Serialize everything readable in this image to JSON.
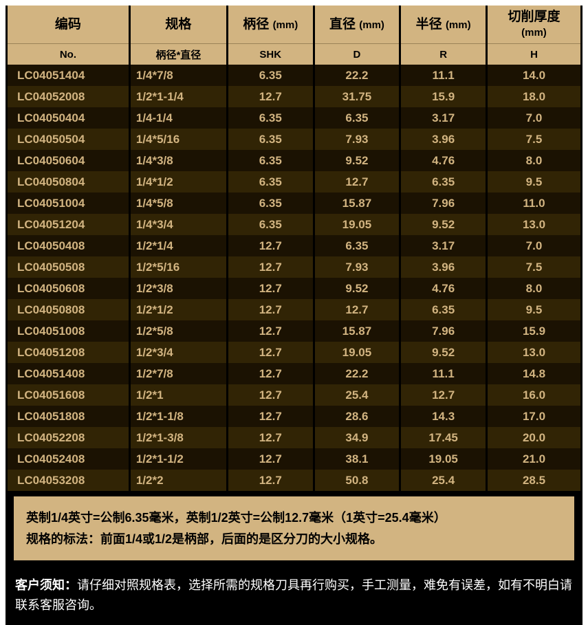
{
  "colors": {
    "header_bg": "#d2b481",
    "header_fg": "#000000",
    "row_odd_bg": "#1b1202",
    "row_even_bg": "#312405",
    "cell_fg": "#d2b481",
    "page_bg": "#ffffff",
    "outer_bg": "#000000"
  },
  "table": {
    "headers_main": [
      "编码",
      "规格",
      "柄径 (mm)",
      "直径 (mm)",
      "半径 (mm)",
      "切削厚度\n(mm)"
    ],
    "headers_sub": [
      "No.",
      "柄径*直径",
      "SHK",
      "D",
      "R",
      "H"
    ],
    "rows": [
      [
        "LC04051404",
        "1/4*7/8",
        "6.35",
        "22.2",
        "11.1",
        "14.0"
      ],
      [
        "LC04052008",
        "1/2*1-1/4",
        "12.7",
        "31.75",
        "15.9",
        "18.0"
      ],
      [
        "LC04050404",
        "1/4-1/4",
        "6.35",
        "6.35",
        "3.17",
        "7.0"
      ],
      [
        "LC04050504",
        "1/4*5/16",
        "6.35",
        "7.93",
        "3.96",
        "7.5"
      ],
      [
        "LC04050604",
        "1/4*3/8",
        "6.35",
        "9.52",
        "4.76",
        "8.0"
      ],
      [
        "LC04050804",
        "1/4*1/2",
        "6.35",
        "12.7",
        "6.35",
        "9.5"
      ],
      [
        "LC04051004",
        "1/4*5/8",
        "6.35",
        "15.87",
        "7.96",
        "11.0"
      ],
      [
        "LC04051204",
        "1/4*3/4",
        "6.35",
        "19.05",
        "9.52",
        "13.0"
      ],
      [
        "LC04050408",
        "1/2*1/4",
        "12.7",
        "6.35",
        "3.17",
        "7.0"
      ],
      [
        "LC04050508",
        "1/2*5/16",
        "12.7",
        "7.93",
        "3.96",
        "7.5"
      ],
      [
        "LC04050608",
        "1/2*3/8",
        "12.7",
        "9.52",
        "4.76",
        "8.0"
      ],
      [
        "LC04050808",
        "1/2*1/2",
        "12.7",
        "12.7",
        "6.35",
        "9.5"
      ],
      [
        "LC04051008",
        "1/2*5/8",
        "12.7",
        "15.87",
        "7.96",
        "15.9"
      ],
      [
        "LC04051208",
        "1/2*3/4",
        "12.7",
        "19.05",
        "9.52",
        "13.0"
      ],
      [
        "LC04051408",
        "1/2*7/8",
        "12.7",
        "22.2",
        "11.1",
        "14.8"
      ],
      [
        "LC04051608",
        "1/2*1",
        "12.7",
        "25.4",
        "12.7",
        "16.0"
      ],
      [
        "LC04051808",
        "1/2*1-1/8",
        "12.7",
        "28.6",
        "14.3",
        "17.0"
      ],
      [
        "LC04052208",
        "1/2*1-3/8",
        "12.7",
        "34.9",
        "17.45",
        "20.0"
      ],
      [
        "LC04052408",
        "1/2*1-1/2",
        "12.7",
        "38.1",
        "19.05",
        "21.0"
      ],
      [
        "LC04053208",
        "1/2*2",
        "12.7",
        "50.8",
        "25.4",
        "28.5"
      ]
    ]
  },
  "note_box": {
    "line1": "英制1/4英寸=公制6.35毫米，英制1/2英寸=公制12.7毫米（1英寸=25.4毫米）",
    "line2": "规格的标法：前面1/4或1/2是柄部，后面的是区分刀的大小规格。"
  },
  "customer_note": {
    "label": "客户须知：",
    "text": "请仔细对照规格表，选择所需的规格刀具再行购买，手工测量，难免有误差，如有不明白请联系客服咨询。"
  }
}
